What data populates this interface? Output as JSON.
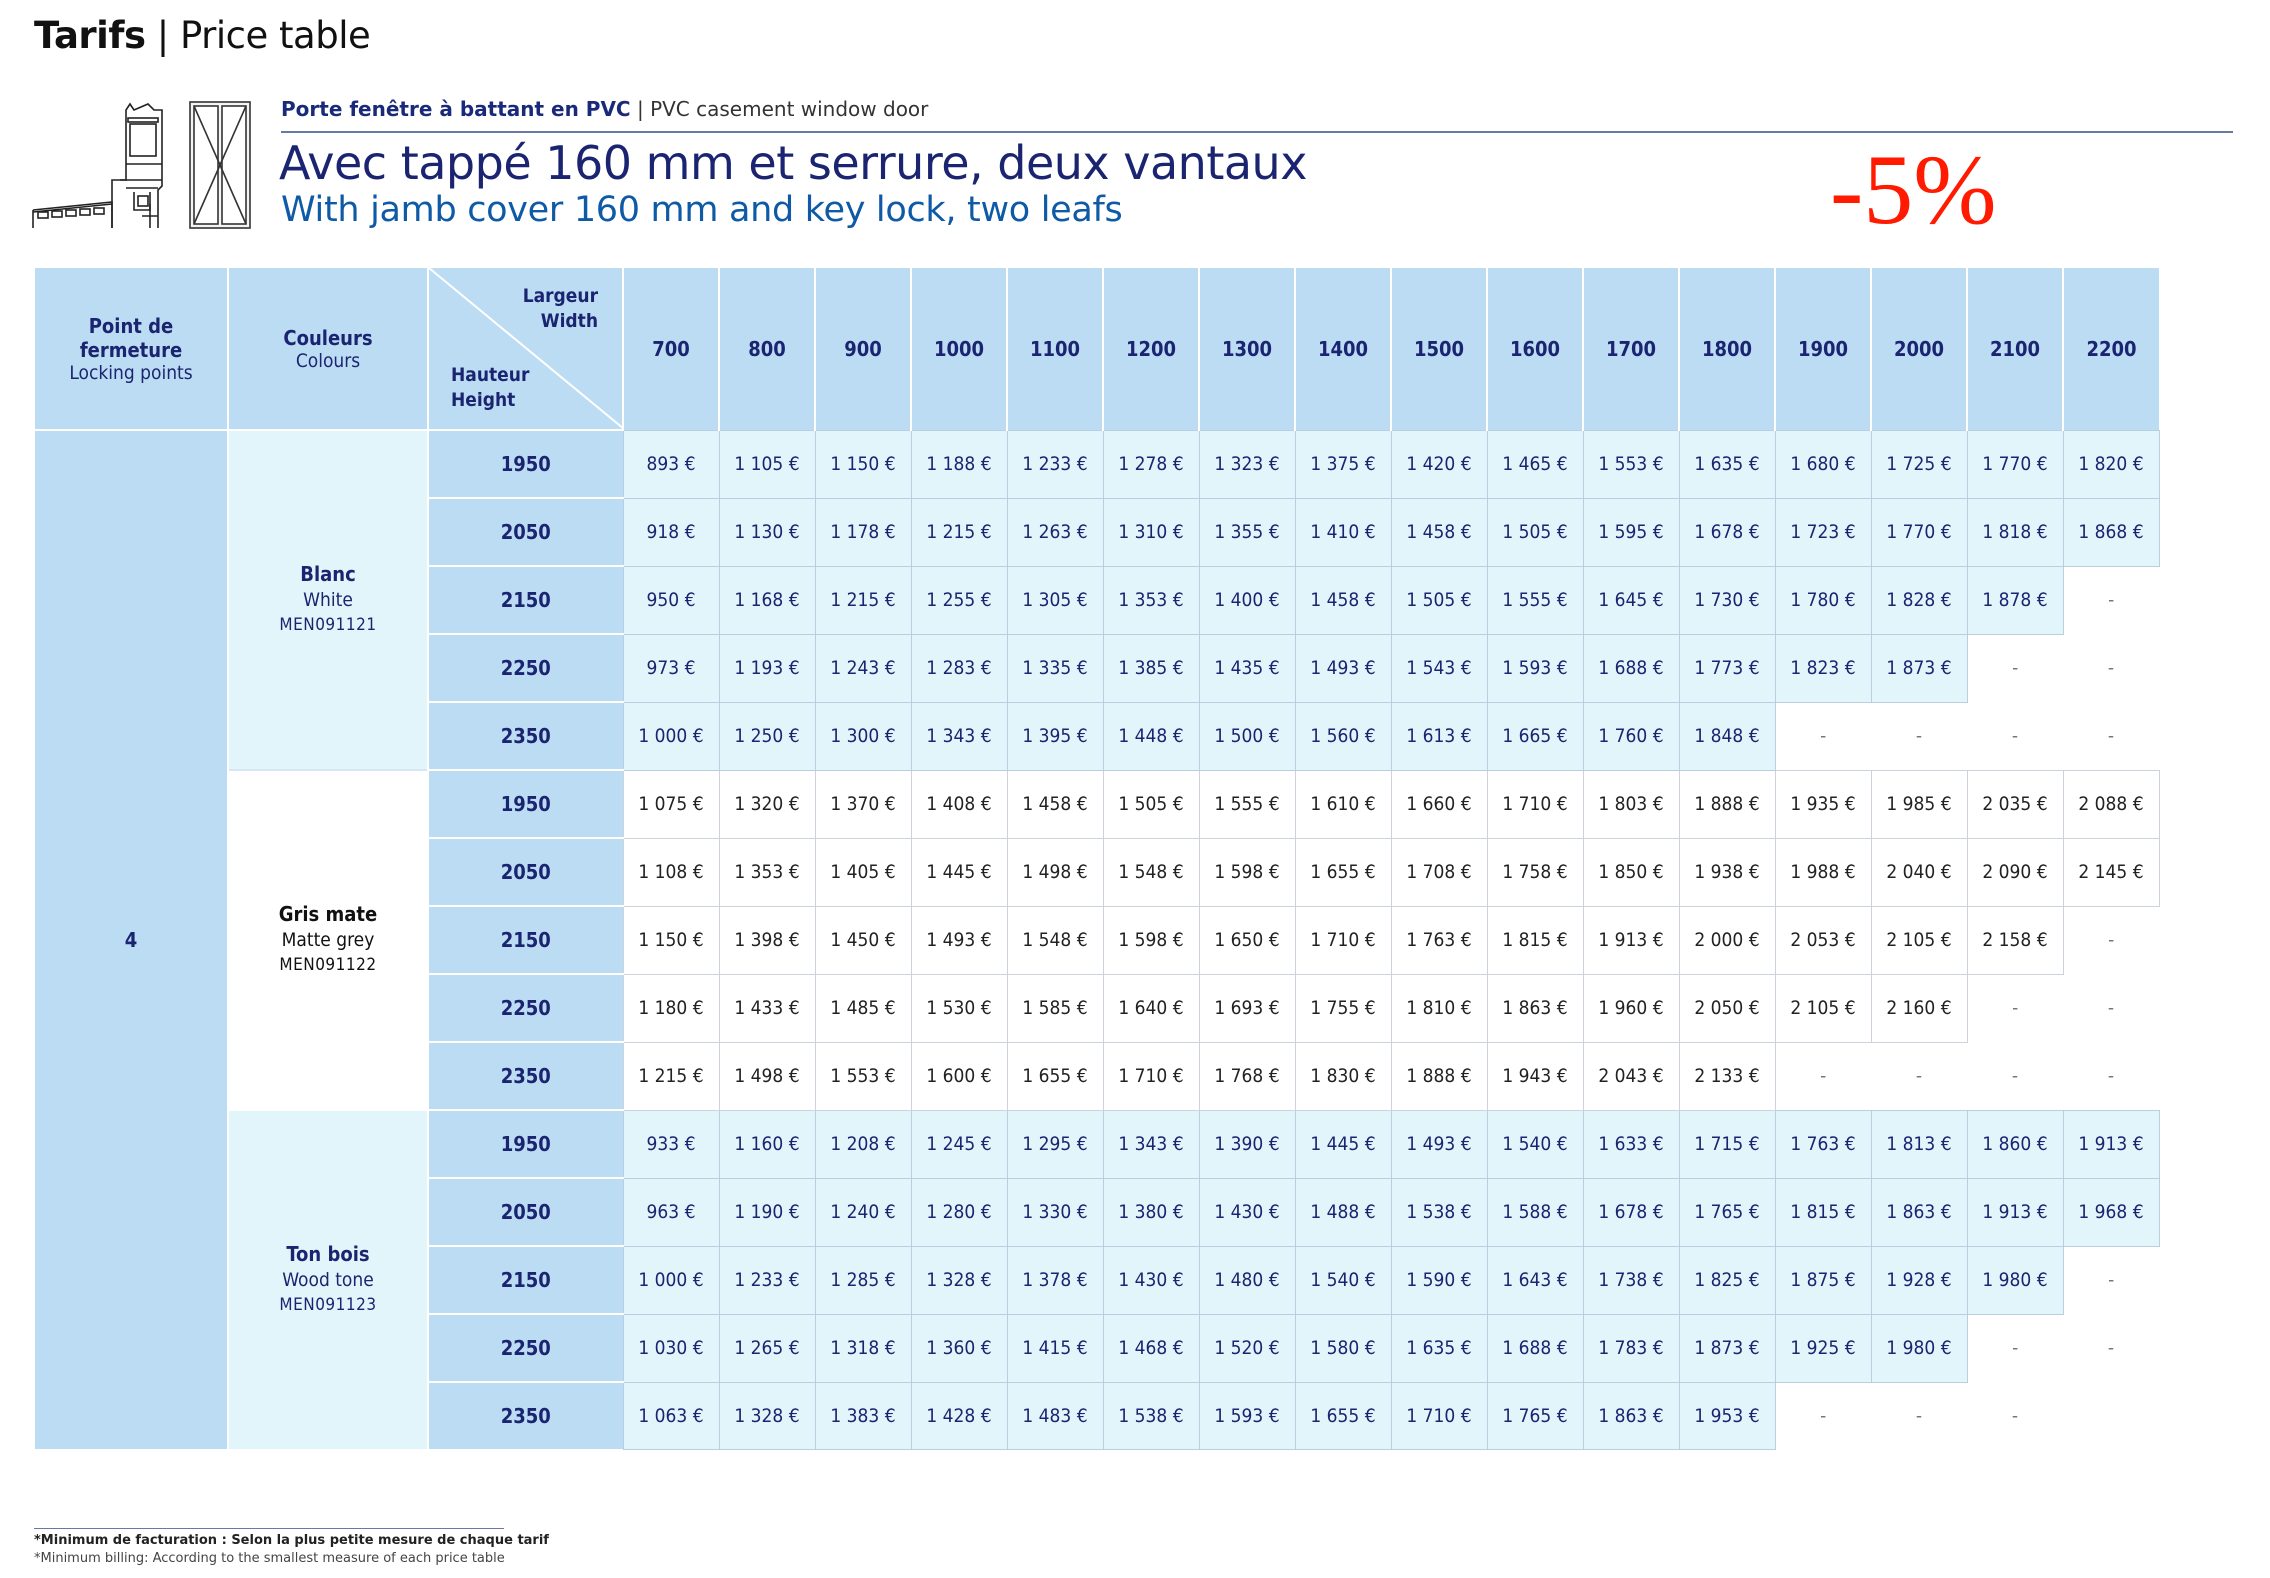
{
  "header": {
    "title_bold": "Tarifs",
    "title_separator": " | ",
    "title_rest": "Price table",
    "subtitle_fr": "Porte fenêtre à battant en PVC",
    "subtitle_separator": " | ",
    "subtitle_en": "PVC casement window door",
    "title_fr": "Avec tappé 160 mm et serrure, deux vantaux",
    "title_en": "With jamb cover 160 mm and key lock, two leafs",
    "discount": "-5%",
    "icon": "window-door-profile-icon"
  },
  "colors": {
    "header_blue": "#bcdcf4",
    "light_blue": "#e2f5fb",
    "navy_text": "#1b2470",
    "accent_blue": "#0e5aa6",
    "discount_red": "#ff1a00"
  },
  "table": {
    "col_locking": {
      "fr": "Point de fermeture",
      "en": "Locking points"
    },
    "col_colours": {
      "fr": "Couleurs",
      "en": "Colours"
    },
    "width_label": {
      "fr": "Largeur",
      "en": "Width"
    },
    "height_label": {
      "fr": "Hauteur",
      "en": "Height"
    },
    "widths": [
      "700",
      "800",
      "900",
      "1000",
      "1100",
      "1200",
      "1300",
      "1400",
      "1500",
      "1600",
      "1700",
      "1800",
      "1900",
      "2000",
      "2100",
      "2200"
    ],
    "locking_points": "4",
    "groups": [
      {
        "name_fr": "Blanc",
        "name_en": "White",
        "code": "MEN091121",
        "style": "blue",
        "rows": [
          {
            "height": "1950",
            "prices": [
              "893 €",
              "1 105 €",
              "1 150 €",
              "1 188 €",
              "1 233 €",
              "1 278 €",
              "1 323 €",
              "1 375 €",
              "1 420 €",
              "1 465 €",
              "1 553 €",
              "1 635 €",
              "1 680 €",
              "1 725 €",
              "1 770 €",
              "1 820 €"
            ]
          },
          {
            "height": "2050",
            "prices": [
              "918 €",
              "1 130 €",
              "1 178 €",
              "1 215 €",
              "1 263 €",
              "1 310 €",
              "1 355 €",
              "1 410 €",
              "1 458 €",
              "1 505 €",
              "1 595 €",
              "1 678 €",
              "1 723 €",
              "1 770 €",
              "1 818 €",
              "1 868 €"
            ]
          },
          {
            "height": "2150",
            "prices": [
              "950 €",
              "1 168 €",
              "1 215 €",
              "1 255 €",
              "1 305 €",
              "1 353 €",
              "1 400 €",
              "1 458 €",
              "1 505 €",
              "1 555 €",
              "1 645 €",
              "1 730 €",
              "1 780 €",
              "1 828 €",
              "1 878 €",
              "-"
            ]
          },
          {
            "height": "2250",
            "prices": [
              "973 €",
              "1 193 €",
              "1 243 €",
              "1 283 €",
              "1 335 €",
              "1 385 €",
              "1 435 €",
              "1 493 €",
              "1 543 €",
              "1 593 €",
              "1 688 €",
              "1 773 €",
              "1 823 €",
              "1 873 €",
              "-",
              "-"
            ]
          },
          {
            "height": "2350",
            "prices": [
              "1 000 €",
              "1 250 €",
              "1 300 €",
              "1 343 €",
              "1 395 €",
              "1 448 €",
              "1 500 €",
              "1 560 €",
              "1 613 €",
              "1 665 €",
              "1 760 €",
              "1 848 €",
              "-",
              "-",
              "-",
              "-"
            ]
          }
        ]
      },
      {
        "name_fr": "Gris mate",
        "name_en": "Matte grey",
        "code": "MEN091122",
        "style": "grey",
        "rows": [
          {
            "height": "1950",
            "prices": [
              "1 075 €",
              "1 320 €",
              "1 370 €",
              "1 408 €",
              "1 458 €",
              "1 505 €",
              "1 555 €",
              "1 610 €",
              "1 660 €",
              "1 710 €",
              "1 803 €",
              "1 888 €",
              "1 935 €",
              "1 985 €",
              "2 035 €",
              "2 088 €"
            ]
          },
          {
            "height": "2050",
            "prices": [
              "1 108 €",
              "1 353 €",
              "1 405 €",
              "1 445 €",
              "1 498 €",
              "1 548 €",
              "1 598 €",
              "1 655 €",
              "1 708 €",
              "1 758 €",
              "1 850 €",
              "1 938 €",
              "1 988 €",
              "2 040 €",
              "2 090 €",
              "2 145 €"
            ]
          },
          {
            "height": "2150",
            "prices": [
              "1 150 €",
              "1 398 €",
              "1 450 €",
              "1 493 €",
              "1 548 €",
              "1 598 €",
              "1 650 €",
              "1 710 €",
              "1 763 €",
              "1 815 €",
              "1 913 €",
              "2 000 €",
              "2 053 €",
              "2 105 €",
              "2 158 €",
              "-"
            ]
          },
          {
            "height": "2250",
            "prices": [
              "1 180 €",
              "1 433 €",
              "1 485 €",
              "1 530 €",
              "1 585 €",
              "1 640 €",
              "1 693 €",
              "1 755 €",
              "1 810 €",
              "1 863 €",
              "1 960 €",
              "2 050 €",
              "2 105 €",
              "2 160 €",
              "-",
              "-"
            ]
          },
          {
            "height": "2350",
            "prices": [
              "1 215 €",
              "1 498 €",
              "1 553 €",
              "1 600 €",
              "1 655 €",
              "1 710 €",
              "1 768 €",
              "1 830 €",
              "1 888 €",
              "1 943 €",
              "2 043 €",
              "2 133 €",
              "-",
              "-",
              "-",
              "-"
            ]
          }
        ]
      },
      {
        "name_fr": "Ton bois",
        "name_en": "Wood tone",
        "code": "MEN091123",
        "style": "blue",
        "rows": [
          {
            "height": "1950",
            "prices": [
              "933 €",
              "1 160 €",
              "1 208 €",
              "1 245 €",
              "1 295 €",
              "1 343 €",
              "1 390 €",
              "1 445 €",
              "1 493 €",
              "1 540 €",
              "1 633 €",
              "1 715 €",
              "1 763 €",
              "1 813 €",
              "1 860 €",
              "1 913 €"
            ]
          },
          {
            "height": "2050",
            "prices": [
              "963 €",
              "1 190 €",
              "1 240 €",
              "1 280 €",
              "1 330 €",
              "1 380 €",
              "1 430 €",
              "1 488 €",
              "1 538 €",
              "1 588 €",
              "1 678 €",
              "1 765 €",
              "1 815 €",
              "1 863 €",
              "1 913 €",
              "1 968 €"
            ]
          },
          {
            "height": "2150",
            "prices": [
              "1 000 €",
              "1 233 €",
              "1 285 €",
              "1 328 €",
              "1 378 €",
              "1 430 €",
              "1 480 €",
              "1 540 €",
              "1 590 €",
              "1 643 €",
              "1 738 €",
              "1 825 €",
              "1 875 €",
              "1 928 €",
              "1 980 €",
              "-"
            ]
          },
          {
            "height": "2250",
            "prices": [
              "1 030 €",
              "1 265 €",
              "1 318 €",
              "1 360 €",
              "1 415 €",
              "1 468 €",
              "1 520 €",
              "1 580 €",
              "1 635 €",
              "1 688 €",
              "1 783 €",
              "1 873 €",
              "1 925 €",
              "1 980 €",
              "-",
              "-"
            ]
          },
          {
            "height": "2350",
            "prices": [
              "1 063 €",
              "1 328 €",
              "1 383 €",
              "1 428 €",
              "1 483 €",
              "1 538 €",
              "1 593 €",
              "1 655 €",
              "1 710 €",
              "1 765 €",
              "1 863 €",
              "1 953 €",
              "-",
              "-",
              "-",
              ""
            ]
          }
        ]
      }
    ]
  },
  "footnote": {
    "fr": "*Minimum de facturation : Selon la plus petite mesure de chaque tarif",
    "en": "*Minimum billing: According to the smallest measure of each price table"
  }
}
